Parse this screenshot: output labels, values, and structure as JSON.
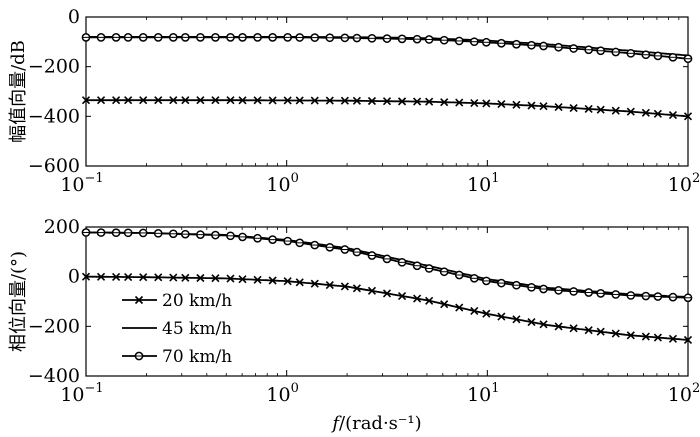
{
  "chart_data": [
    {
      "type": "line",
      "xscale": "log",
      "xlim": [
        0.1,
        100
      ],
      "ylim": [
        -600,
        0
      ],
      "yticks": [
        0,
        -200,
        -400,
        -600
      ],
      "xticks": [
        {
          "base": "10",
          "exp": "−1",
          "value": 0.1
        },
        {
          "base": "10",
          "exp": "0",
          "value": 1
        },
        {
          "base": "10",
          "exp": "1",
          "value": 10
        },
        {
          "base": "10",
          "exp": "2",
          "value": 100
        }
      ],
      "ylabel": "幅值向量/dB",
      "xlabel": "",
      "grid": false,
      "series": [
        {
          "name": "20 km/h",
          "marker": "x",
          "x": [
            0.1,
            0.2,
            0.5,
            1,
            2,
            5,
            10,
            20,
            50,
            100
          ],
          "y": [
            -335,
            -335,
            -335,
            -336,
            -337,
            -341,
            -348,
            -360,
            -380,
            -400
          ]
        },
        {
          "name": "45 km/h",
          "marker": "none",
          "x": [
            0.1,
            0.2,
            0.5,
            1,
            2,
            5,
            10,
            20,
            50,
            100
          ],
          "y": [
            -80,
            -80,
            -80,
            -80,
            -81,
            -85,
            -95,
            -110,
            -135,
            -155
          ]
        },
        {
          "name": "70 km/h",
          "marker": "circle",
          "x": [
            0.1,
            0.2,
            0.5,
            1,
            2,
            5,
            10,
            20,
            50,
            100
          ],
          "y": [
            -82,
            -82,
            -82,
            -82,
            -84,
            -90,
            -102,
            -118,
            -145,
            -168
          ]
        }
      ]
    },
    {
      "type": "line",
      "xscale": "log",
      "xlim": [
        0.1,
        100
      ],
      "ylim": [
        -400,
        200
      ],
      "yticks": [
        200,
        0,
        -200,
        -400
      ],
      "xticks": [
        {
          "base": "10",
          "exp": "−1",
          "value": 0.1
        },
        {
          "base": "10",
          "exp": "0",
          "value": 1
        },
        {
          "base": "10",
          "exp": "1",
          "value": 10
        },
        {
          "base": "10",
          "exp": "2",
          "value": 100
        }
      ],
      "ylabel": "相位向量/(°)",
      "xlabel": "f/(rad·s⁻¹)",
      "grid": false,
      "legend": "lower-left",
      "series": [
        {
          "name": "20 km/h",
          "marker": "x",
          "x": [
            0.1,
            0.2,
            0.5,
            1,
            2,
            5,
            10,
            20,
            50,
            100
          ],
          "y": [
            0,
            -2,
            -7,
            -18,
            -40,
            -95,
            -150,
            -195,
            -235,
            -255
          ]
        },
        {
          "name": "45 km/h",
          "marker": "none",
          "x": [
            0.1,
            0.2,
            0.5,
            1,
            2,
            5,
            10,
            20,
            50,
            100
          ],
          "y": [
            178,
            176,
            168,
            148,
            115,
            45,
            -10,
            -45,
            -70,
            -82
          ]
        },
        {
          "name": "70 km/h",
          "marker": "circle",
          "x": [
            0.1,
            0.2,
            0.5,
            1,
            2,
            5,
            10,
            20,
            50,
            100
          ],
          "y": [
            178,
            176,
            166,
            144,
            108,
            35,
            -18,
            -52,
            -75,
            -85
          ]
        }
      ]
    }
  ]
}
